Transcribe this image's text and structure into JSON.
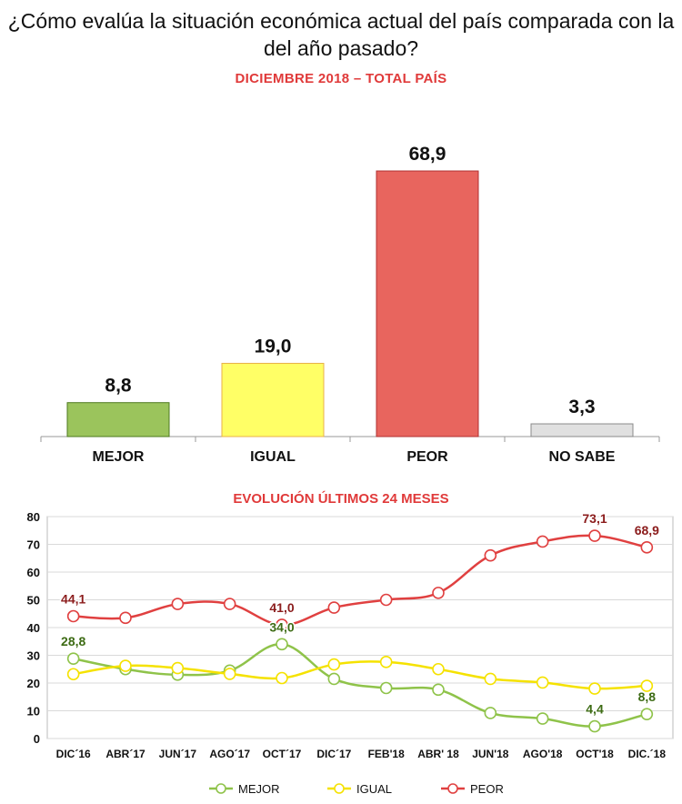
{
  "title": "¿Cómo evalúa la situación económica actual del país comparada con la del año pasado?",
  "chart_data": [
    {
      "type": "bar",
      "title": "DICIEMBRE 2018 – TOTAL PAÍS",
      "categories": [
        "MEJOR",
        "IGUAL",
        "PEOR",
        "NO SABE"
      ],
      "values": [
        8.8,
        19.0,
        68.9,
        3.3
      ],
      "value_labels": [
        "8,8",
        "19,0",
        "68,9",
        "3,3"
      ],
      "colors": [
        "#9bc45c",
        "#ffff66",
        "#e8655e",
        "#e0e0e0"
      ],
      "border_colors": [
        "#4e7a1f",
        "#e8b04a",
        "#b03030",
        "#8a8a8a"
      ],
      "ylim": [
        0,
        75
      ]
    },
    {
      "type": "line",
      "title": "EVOLUCIÓN ÚLTIMOS 24 MESES",
      "categories": [
        "DIC´16",
        "ABR´17",
        "JUN´17",
        "AGO´17",
        "OCT´17",
        "DIC´17",
        "FEB'18",
        "ABR' 18",
        "JUN'18",
        "AGO'18",
        "OCT'18",
        "DIC.´18"
      ],
      "ylim": [
        0,
        80
      ],
      "yticks": [
        "0",
        "10",
        "20",
        "30",
        "40",
        "50",
        "60",
        "70",
        "80"
      ],
      "series": [
        {
          "name": "MEJOR",
          "color": "#8fc34a",
          "values": [
            28.8,
            25.0,
            23.0,
            24.5,
            34.0,
            21.5,
            18.2,
            17.6,
            9.2,
            7.2,
            4.4,
            8.8
          ]
        },
        {
          "name": "IGUAL",
          "color": "#f5e200",
          "values": [
            23.2,
            26.2,
            25.4,
            23.3,
            21.8,
            26.7,
            27.6,
            25.0,
            21.5,
            20.2,
            18.0,
            19.0
          ]
        },
        {
          "name": "PEOR",
          "color": "#e04040",
          "values": [
            44.1,
            43.5,
            48.5,
            48.5,
            41.0,
            47.2,
            50.0,
            52.5,
            66.0,
            71.0,
            73.1,
            68.9
          ]
        }
      ],
      "annotations": [
        {
          "series": 2,
          "index": 0,
          "text": "44,1"
        },
        {
          "series": 2,
          "index": 4,
          "text": "41,0"
        },
        {
          "series": 2,
          "index": 10,
          "text": "73,1"
        },
        {
          "series": 2,
          "index": 11,
          "text": "68,9"
        },
        {
          "series": 0,
          "index": 0,
          "text": "28,8"
        },
        {
          "series": 0,
          "index": 4,
          "text": "34,0"
        },
        {
          "series": 0,
          "index": 10,
          "text": "4,4"
        },
        {
          "series": 0,
          "index": 11,
          "text": "8,8"
        }
      ],
      "grid": true,
      "legend": "bottom"
    }
  ]
}
